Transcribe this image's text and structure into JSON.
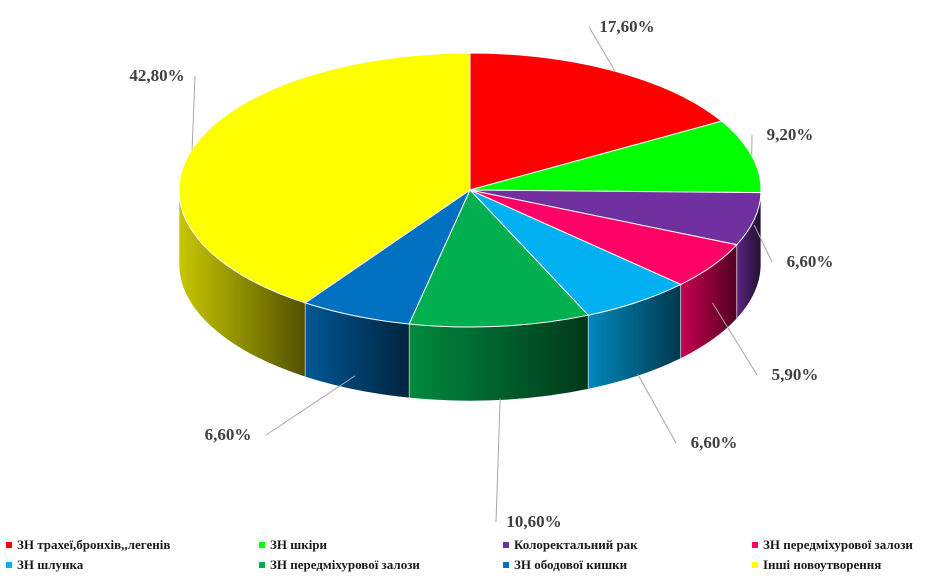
{
  "chart_data": {
    "type": "pie",
    "style": "3d",
    "title": "",
    "start_angle_deg": 0,
    "direction": "clockwise",
    "slices": [
      {
        "label": "ЗН трахеї,бронхів,,легенів",
        "value": 17.6,
        "display": "17,60%",
        "color": "#ff0000"
      },
      {
        "label": "ЗН шкіри",
        "value": 9.2,
        "display": "9,20%",
        "color": "#00ff00"
      },
      {
        "label": "Колоректальний рак",
        "value": 6.6,
        "display": "6,60%",
        "color": "#7030a0"
      },
      {
        "label": "ЗН передміхурової залози",
        "value": 5.9,
        "display": "5,90%",
        "color": "#ff0066"
      },
      {
        "label": "ЗН шлунка",
        "value": 6.6,
        "display": "6,60%",
        "color": "#00b0f0"
      },
      {
        "label": "ЗН передміхурової залози",
        "value": 10.6,
        "display": "10,60%",
        "color": "#00b050"
      },
      {
        "label": "ЗН ободової кишки",
        "value": 6.6,
        "display": "6,60%",
        "color": "#0070c0"
      },
      {
        "label": "Інші новоутворення",
        "value": 42.8,
        "display": "42,80%",
        "color": "#ffff00"
      }
    ],
    "legend_position": "bottom",
    "label_color": "#404040"
  }
}
